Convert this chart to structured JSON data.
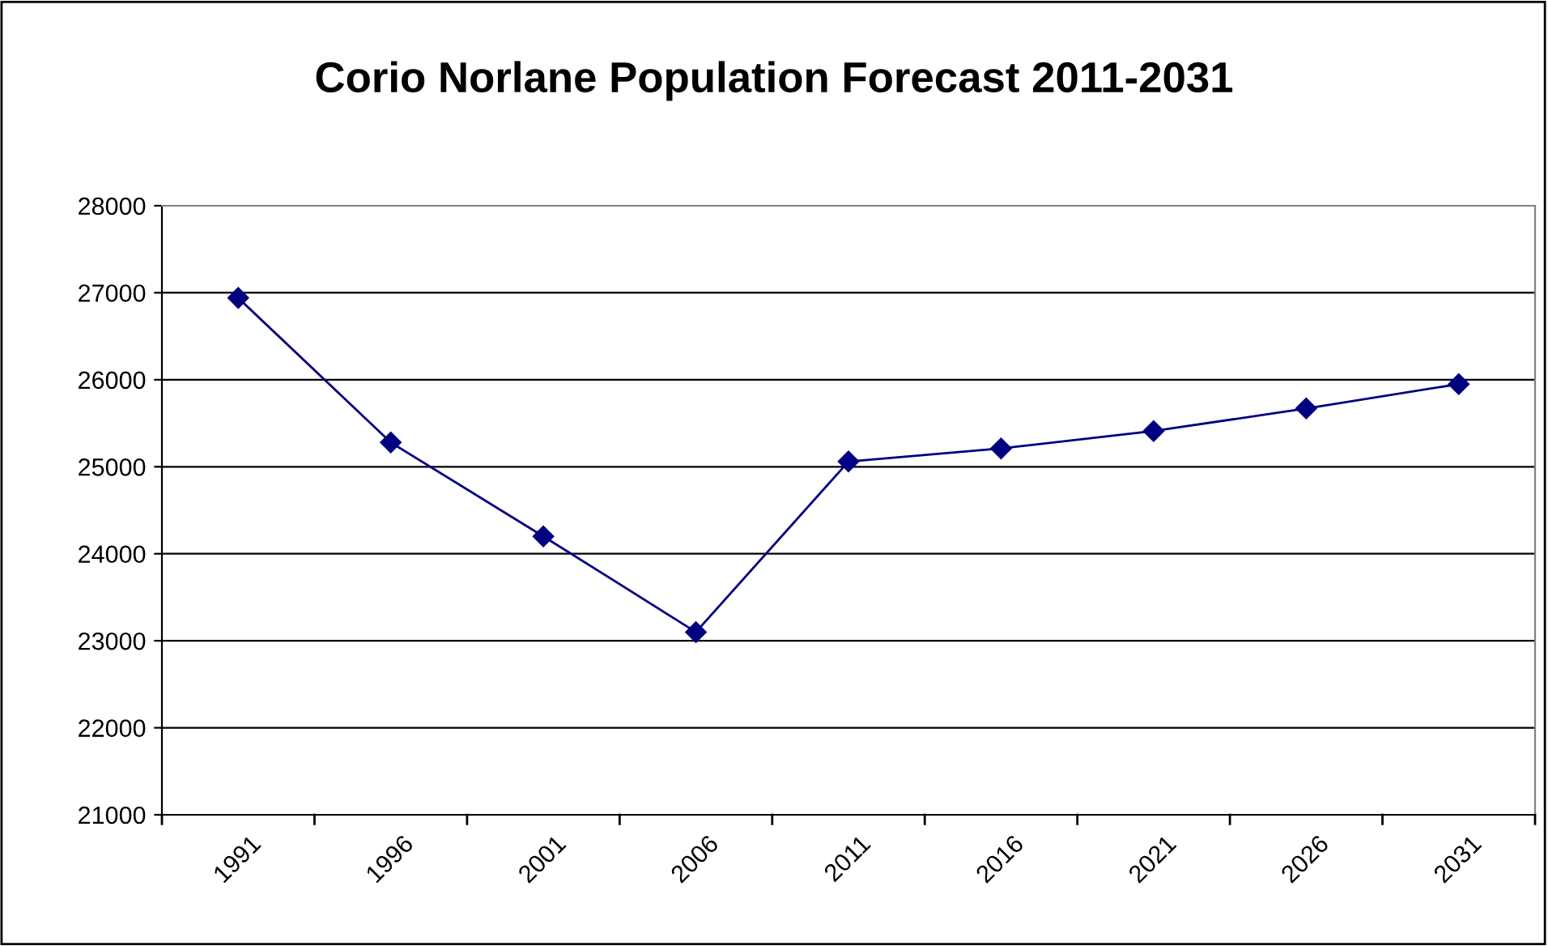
{
  "chart_data": {
    "type": "line",
    "title": "Corio Norlane Population Forecast 2011-2031",
    "categories": [
      "1991",
      "1996",
      "2001",
      "2006",
      "2011",
      "2016",
      "2021",
      "2026",
      "2031"
    ],
    "series": [
      {
        "color": "#000080",
        "values": [
          26940,
          25280,
          24200,
          23100,
          25060,
          25210,
          25410,
          25670,
          25950
        ]
      }
    ],
    "ylim": [
      21000,
      28000
    ],
    "yticks": [
      21000,
      22000,
      23000,
      24000,
      25000,
      26000,
      27000,
      28000
    ],
    "grid": "y",
    "legend": false,
    "marker": "diamond",
    "line_style": "solid"
  }
}
